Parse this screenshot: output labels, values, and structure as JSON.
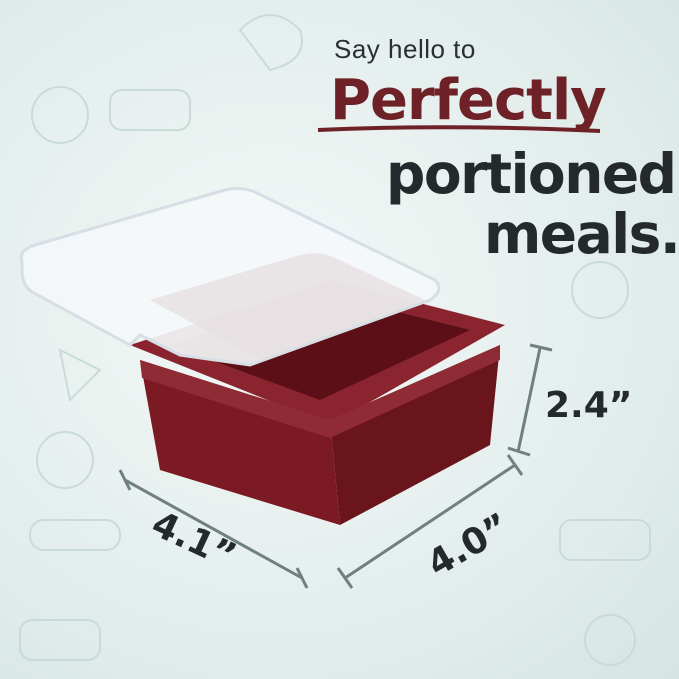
{
  "headline": {
    "line1": "Say hello to",
    "line2": "Perfectly",
    "line3": "portioned",
    "line4": "meals."
  },
  "dimensions": {
    "height": "2.4”",
    "width": "4.1”",
    "depth": "4.0”"
  },
  "colors": {
    "accent": "#6e2126",
    "text": "#24292d",
    "container": "#7b1a22",
    "background": "#e3eeec"
  }
}
